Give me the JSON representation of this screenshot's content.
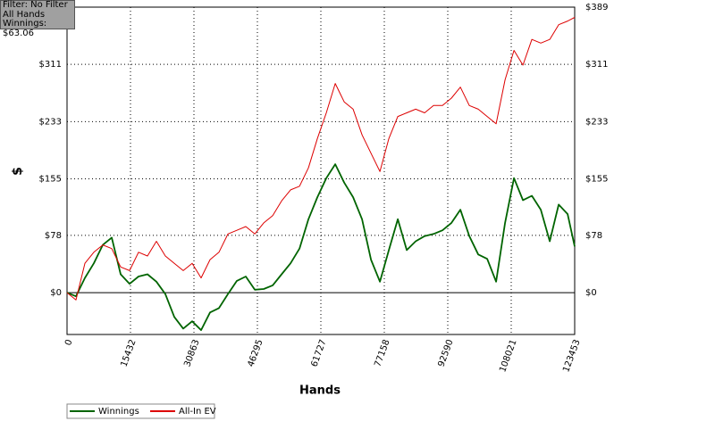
{
  "info": {
    "filter": "Filter: No Filter",
    "hands": "All Hands",
    "winnings": "Winnings: $63.06"
  },
  "chart_data": {
    "type": "line",
    "xlabel": "Hands",
    "ylabel": "$",
    "x": [
      0,
      2174,
      4348,
      6522,
      8696,
      10870,
      13044,
      15218,
      17392,
      19566,
      21740,
      23914,
      26088,
      28262,
      30436,
      32610,
      34784,
      36958,
      39132,
      41306,
      43480,
      45654,
      47828,
      50002,
      52176,
      54350,
      56524,
      58698,
      60872,
      63046,
      65220,
      67394,
      69568,
      71742,
      73916,
      76090,
      78264,
      80438,
      82612,
      84786,
      86960,
      89134,
      91308,
      93482,
      95656,
      97830,
      100004,
      102178,
      104352,
      106526,
      108700,
      110874,
      113048,
      115222,
      117396,
      119570,
      121744,
      123453
    ],
    "series": [
      {
        "name": "Winnings",
        "color": "#006400",
        "values": [
          0,
          -5,
          20,
          40,
          65,
          75,
          25,
          12,
          22,
          25,
          15,
          -2,
          -33,
          -49,
          -39,
          -51,
          -27,
          -21,
          -2,
          16,
          22,
          4,
          5,
          10,
          25,
          40,
          60,
          100,
          130,
          156,
          175,
          150,
          130,
          100,
          45,
          15,
          58,
          100,
          58,
          70,
          77,
          80,
          85,
          95,
          113,
          77,
          52,
          46,
          15,
          95,
          156,
          126,
          132,
          113,
          70,
          120,
          107,
          63
        ]
      },
      {
        "name": "All-In EV",
        "color": "#dd0000",
        "values": [
          0,
          -10,
          40,
          55,
          65,
          60,
          35,
          30,
          55,
          50,
          70,
          50,
          40,
          30,
          40,
          20,
          45,
          55,
          80,
          85,
          90,
          80,
          95,
          105,
          125,
          140,
          145,
          170,
          210,
          245,
          285,
          260,
          250,
          215,
          190,
          165,
          210,
          240,
          245,
          250,
          245,
          255,
          255,
          265,
          280,
          255,
          250,
          240,
          230,
          290,
          330,
          310,
          345,
          340,
          345,
          365,
          370,
          375
        ]
      }
    ],
    "xlim": [
      0,
      123453
    ],
    "xticks": [
      0,
      15432,
      30863,
      46295,
      61727,
      77158,
      92590,
      108021,
      123453
    ],
    "ylim": [
      -57,
      389
    ],
    "yticks": [
      {
        "value": 0,
        "label": "$0"
      },
      {
        "value": 78,
        "label": "$78"
      },
      {
        "value": 155,
        "label": "$155"
      },
      {
        "value": 233,
        "label": "$233"
      },
      {
        "value": 311,
        "label": "$311"
      },
      {
        "value": 389,
        "label": "$389"
      }
    ],
    "grid": true,
    "legend": "bottom-left"
  }
}
